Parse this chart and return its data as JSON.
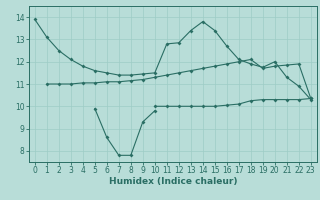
{
  "x": [
    0,
    1,
    2,
    3,
    4,
    5,
    6,
    7,
    8,
    9,
    10,
    11,
    12,
    13,
    14,
    15,
    16,
    17,
    18,
    19,
    20,
    21,
    22,
    23
  ],
  "line1_x": [
    0,
    1,
    2,
    3,
    4,
    5,
    6,
    7,
    8,
    9,
    10,
    11,
    12,
    13,
    14,
    15,
    16,
    17,
    18,
    19,
    20,
    21,
    22,
    23
  ],
  "line1_y": [
    13.9,
    13.1,
    12.5,
    12.1,
    11.8,
    11.6,
    11.5,
    11.4,
    11.4,
    11.45,
    11.5,
    12.8,
    12.85,
    13.4,
    13.8,
    13.4,
    12.7,
    12.1,
    11.9,
    11.75,
    12.0,
    11.3,
    10.9,
    10.3
  ],
  "line2_x": [
    1,
    2,
    3,
    4,
    5,
    6,
    7,
    8,
    9,
    10,
    11,
    12,
    13,
    14,
    15,
    16,
    17,
    18,
    19,
    20,
    21,
    22,
    23
  ],
  "line2_y": [
    11.0,
    11.0,
    11.0,
    11.05,
    11.05,
    11.1,
    11.1,
    11.15,
    11.2,
    11.3,
    11.4,
    11.5,
    11.6,
    11.7,
    11.8,
    11.9,
    12.0,
    12.1,
    11.7,
    11.8,
    11.85,
    11.9,
    10.35
  ],
  "line3_x": [
    5,
    6,
    7,
    8,
    9,
    10
  ],
  "line3_y": [
    9.9,
    8.6,
    7.8,
    7.8,
    9.3,
    9.8
  ],
  "line4_x": [
    10,
    11,
    12,
    13,
    14,
    15,
    16,
    17,
    18,
    19,
    20,
    21,
    22,
    23
  ],
  "line4_y": [
    10.0,
    10.0,
    10.0,
    10.0,
    10.0,
    10.0,
    10.05,
    10.1,
    10.25,
    10.3,
    10.3,
    10.3,
    10.3,
    10.35
  ],
  "line_color": "#2a6e64",
  "bg_color": "#b8ddd8",
  "grid_color": "#9eccc6",
  "xlabel": "Humidex (Indice chaleur)",
  "ylim": [
    7.5,
    14.5
  ],
  "xlim": [
    -0.5,
    23.5
  ],
  "yticks": [
    8,
    9,
    10,
    11,
    12,
    13,
    14
  ],
  "xticks": [
    0,
    1,
    2,
    3,
    4,
    5,
    6,
    7,
    8,
    9,
    10,
    11,
    12,
    13,
    14,
    15,
    16,
    17,
    18,
    19,
    20,
    21,
    22,
    23
  ],
  "tick_fontsize": 5.5,
  "xlabel_fontsize": 6.5
}
